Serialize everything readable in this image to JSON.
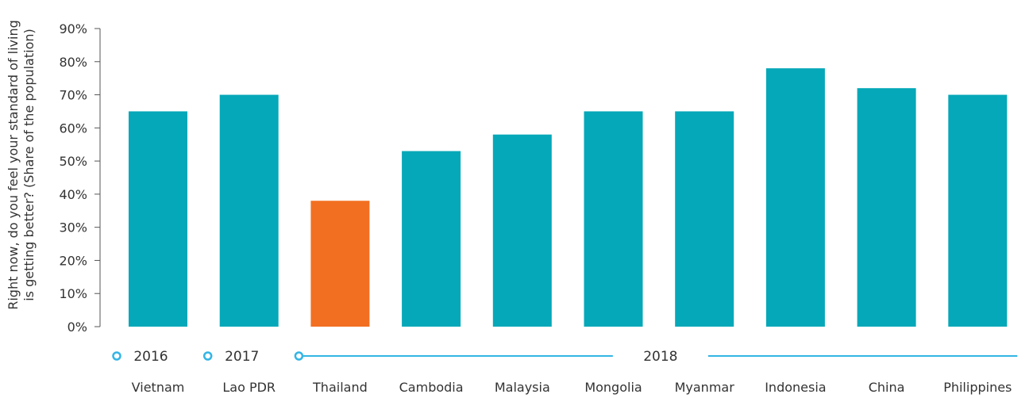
{
  "chart_data": {
    "type": "bar",
    "ylabel_lines": [
      "Right now, do you feel your standard of living",
      "is getting better? (Share of the population)"
    ],
    "categories": [
      "Vietnam",
      "Lao PDR",
      "Thailand",
      "Cambodia",
      "Malaysia",
      "Mongolia",
      "Myanmar",
      "Indonesia",
      "China",
      "Philippines"
    ],
    "values": [
      65,
      70,
      38,
      53,
      58,
      65,
      65,
      78,
      72,
      70
    ],
    "ylim": [
      0,
      90
    ],
    "yticks": [
      "0%",
      "10%",
      "20%",
      "30%",
      "40%",
      "50%",
      "60%",
      "70%",
      "80%",
      "90%"
    ],
    "grid": false,
    "colors": {
      "default": "#05A8B8",
      "highlight": "#F26F21",
      "year_line": "#33B5E5"
    },
    "highlight_index": 2,
    "years": [
      {
        "label": "2016",
        "start_index": 0,
        "end_index": 0
      },
      {
        "label": "2017",
        "start_index": 1,
        "end_index": 1
      },
      {
        "label": "2018",
        "start_index": 2,
        "end_index": 9
      }
    ]
  }
}
